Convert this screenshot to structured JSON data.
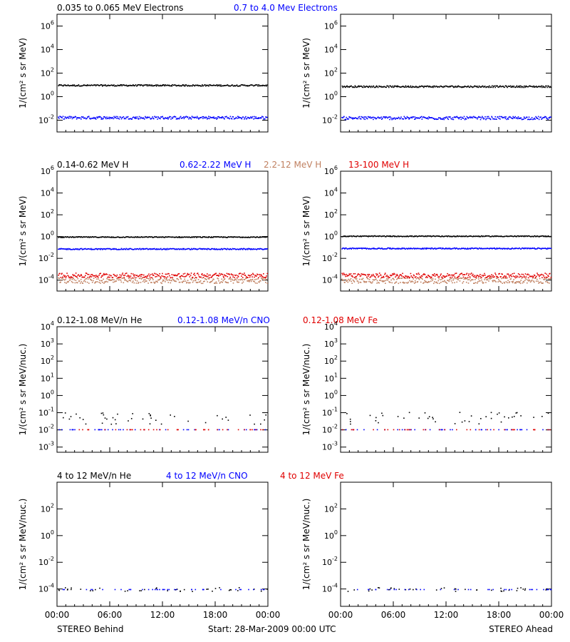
{
  "colors": {
    "black": "#000000",
    "blue": "#0000ff",
    "tan": "#c08060",
    "red": "#e00000"
  },
  "footer": {
    "left": "STEREO Behind",
    "center": "Start: 28-Mar-2009 00:00 UTC",
    "right": "STEREO Ahead"
  },
  "x_ticks": [
    "00:00",
    "06:00",
    "12:00",
    "18:00",
    "00:00"
  ],
  "chart_data": [
    {
      "type": "scatter",
      "ylabel": "1/(cm² s sr MeV)",
      "yscale": "log",
      "ylim": [
        0.001,
        10000000
      ],
      "ytick_exponents": [
        -2,
        0,
        2,
        4,
        6
      ],
      "legend": [
        {
          "label": "0.035 to 0.065 MeV Electrons",
          "color": "black"
        },
        {
          "label": "0.7 to 4.0 Mev Electrons",
          "color": "blue"
        }
      ],
      "panels": [
        {
          "name": "STEREO Behind",
          "series": [
            {
              "color": "black",
              "level": 10,
              "spread": 0.06
            },
            {
              "color": "blue",
              "level": 0.018,
              "spread": 0.12
            }
          ]
        },
        {
          "name": "STEREO Ahead",
          "series": [
            {
              "color": "black",
              "level": 8,
              "spread": 0.07
            },
            {
              "color": "blue",
              "level": 0.017,
              "spread": 0.13
            }
          ]
        }
      ]
    },
    {
      "type": "scatter",
      "ylabel": "1/(cm² s sr MeV)",
      "yscale": "log",
      "ylim": [
        1e-05,
        1000000
      ],
      "ytick_exponents": [
        -4,
        -2,
        0,
        2,
        4,
        6
      ],
      "legend": [
        {
          "label": "0.14-0.62 MeV H",
          "color": "black"
        },
        {
          "label": "0.62-2.22 MeV H",
          "color": "blue"
        },
        {
          "label": "2.2-12 MeV H",
          "color": "tan"
        },
        {
          "label": "13-100 MeV H",
          "color": "red"
        }
      ],
      "panels": [
        {
          "name": "STEREO Behind",
          "series": [
            {
              "color": "black",
              "level": 1.0,
              "spread": 0.04
            },
            {
              "color": "blue",
              "level": 0.08,
              "spread": 0.05
            },
            {
              "color": "tan",
              "level": 0.0001,
              "spread": 0.25
            },
            {
              "color": "red",
              "level": 0.0003,
              "spread": 0.22
            }
          ]
        },
        {
          "name": "STEREO Ahead",
          "series": [
            {
              "color": "black",
              "level": 1.2,
              "spread": 0.04
            },
            {
              "color": "blue",
              "level": 0.09,
              "spread": 0.05
            },
            {
              "color": "tan",
              "level": 0.0001,
              "spread": 0.25
            },
            {
              "color": "red",
              "level": 0.0003,
              "spread": 0.22
            }
          ]
        }
      ]
    },
    {
      "type": "scatter",
      "ylabel": "1/(cm² s sr MeV/nuc.)",
      "yscale": "log",
      "ylim": [
        0.0005,
        10000
      ],
      "ytick_exponents": [
        -3,
        -2,
        -1,
        0,
        1,
        2,
        3,
        4
      ],
      "legend": [
        {
          "label": "0.12-1.08 MeV/n He",
          "color": "black"
        },
        {
          "label": "0.12-1.08 MeV/n CNO",
          "color": "blue"
        },
        {
          "label": "0.12-1.08 MeV Fe",
          "color": "red"
        }
      ],
      "panels": [
        {
          "name": "STEREO Behind",
          "series": [
            {
              "color": "black",
              "level": 0.05,
              "spread": 0.35,
              "sparse": true
            },
            {
              "color": "blue",
              "level": 0.011,
              "spread": 0.0,
              "sparse": true
            },
            {
              "color": "red",
              "level": 0.011,
              "spread": 0.0,
              "sparse": true
            }
          ]
        },
        {
          "name": "STEREO Ahead",
          "series": [
            {
              "color": "black",
              "level": 0.05,
              "spread": 0.35,
              "sparse": true
            },
            {
              "color": "blue",
              "level": 0.011,
              "spread": 0.0,
              "sparse": true
            },
            {
              "color": "red",
              "level": 0.011,
              "spread": 0.0,
              "sparse": true
            }
          ]
        }
      ]
    },
    {
      "type": "scatter",
      "ylabel": "1/(cm² s sr MeV/nuc.)",
      "yscale": "log",
      "ylim": [
        5e-06,
        10000
      ],
      "ytick_exponents": [
        -4,
        -2,
        0,
        2
      ],
      "legend": [
        {
          "label": "4 to 12 MeV/n He",
          "color": "black"
        },
        {
          "label": "4 to 12 MeV/n CNO",
          "color": "blue"
        },
        {
          "label": "4 to 12 MeV Fe",
          "color": "red"
        }
      ],
      "panels": [
        {
          "name": "STEREO Behind",
          "series": [
            {
              "color": "black",
              "level": 0.0001,
              "spread": 0.15,
              "sparse": true
            },
            {
              "color": "blue",
              "level": 0.0001,
              "spread": 0.0,
              "sparse": true
            }
          ]
        },
        {
          "name": "STEREO Ahead",
          "series": [
            {
              "color": "black",
              "level": 0.0001,
              "spread": 0.15,
              "sparse": true
            },
            {
              "color": "blue",
              "level": 0.0001,
              "spread": 0.0,
              "sparse": true
            }
          ]
        }
      ]
    }
  ]
}
